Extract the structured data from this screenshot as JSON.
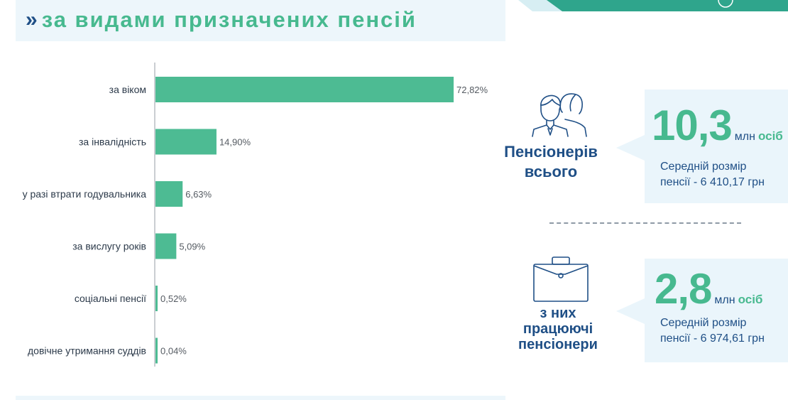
{
  "header": {
    "chevrons": "»",
    "title": "за видами призначених пенсій"
  },
  "chart_data": {
    "type": "bar",
    "orientation": "horizontal",
    "categories": [
      "за віком",
      "за інвалідність",
      "у разі втрати годувальника",
      "за вислугу років",
      "соціальні пенсії",
      "довічне утримання суддів"
    ],
    "values": [
      72.82,
      14.9,
      6.63,
      5.09,
      0.52,
      0.04
    ],
    "value_labels": [
      "72,82%",
      "14,90%",
      "6,63%",
      "5,09%",
      "0,52%",
      "0,04%"
    ],
    "color": "#4dbb93",
    "xlim": [
      0,
      72.82
    ],
    "grid": false
  },
  "summary": [
    {
      "label_lines": [
        "Пенсіонерів",
        "всього"
      ],
      "icon": "people-icon",
      "number": "10,3",
      "unit": "млн",
      "unit2": "осіб",
      "sub_lines": [
        "Середній розмір",
        "пенсії - 6 410,17 грн"
      ]
    },
    {
      "label_lines": [
        "з них",
        "працюючі",
        "пенсіонери"
      ],
      "icon": "briefcase-icon",
      "number": "2,8",
      "unit": "млн",
      "unit2": "осіб",
      "sub_lines": [
        "Середній розмір",
        "пенсії - 6 974,61 грн"
      ]
    }
  ],
  "colors": {
    "green": "#47b98f",
    "navy": "#1f4f86",
    "panel": "#eaf5fb"
  }
}
